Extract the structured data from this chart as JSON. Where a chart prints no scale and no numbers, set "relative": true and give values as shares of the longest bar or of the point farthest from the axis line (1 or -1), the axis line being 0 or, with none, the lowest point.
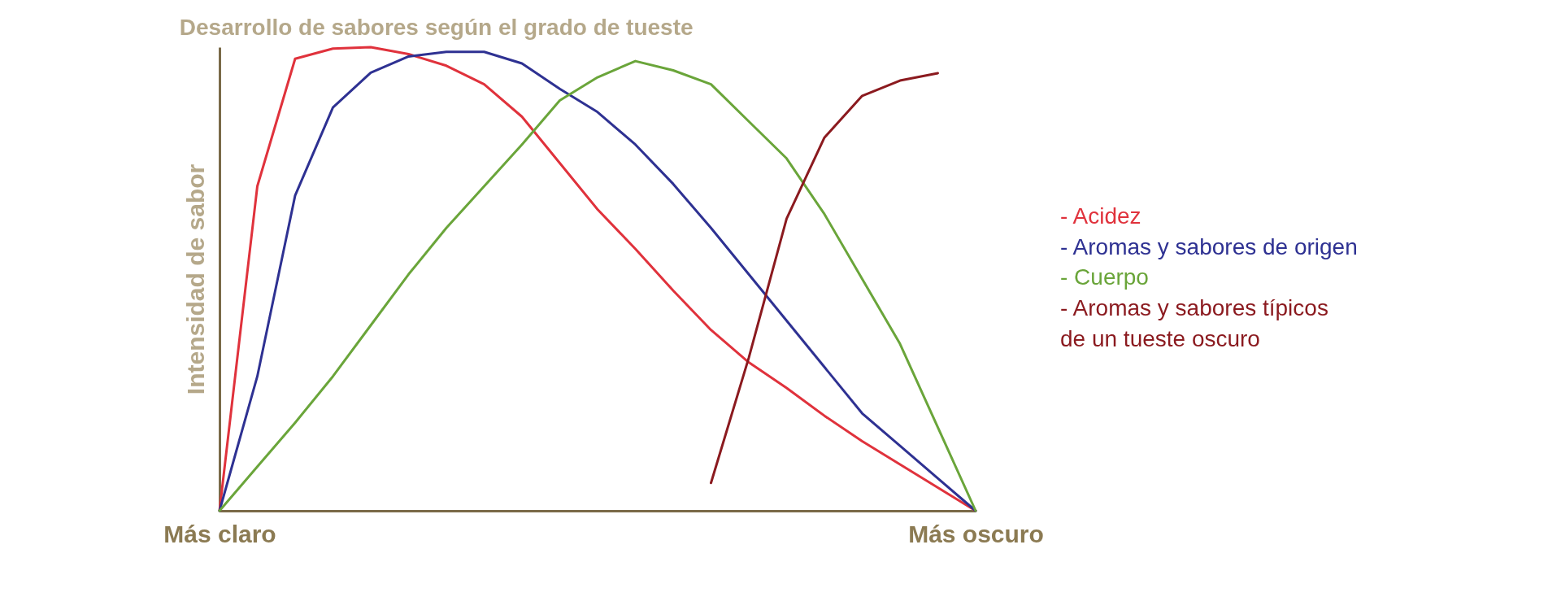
{
  "chart_data": {
    "type": "line",
    "title": "Desarrollo de sabores según el grado de tueste",
    "ylabel": "Intensidad de sabor",
    "relative": true,
    "categories": [
      "Más claro",
      null,
      null,
      null,
      null,
      null,
      null,
      null,
      null,
      null,
      null,
      null,
      null,
      null,
      null,
      null,
      null,
      null,
      null,
      null,
      "Más oscuro"
    ],
    "grid": false,
    "marker": "none",
    "line_style": "solid",
    "series": [
      {
        "name": "- Acidez",
        "color": "#e0323c",
        "values": [
          0,
          0.7,
          0.975,
          0.997,
          1,
          0.985,
          0.96,
          0.92,
          0.85,
          0.75,
          0.65,
          0.565,
          0.475,
          0.39,
          0.32,
          0.265,
          0.205,
          0.15,
          0.1,
          0.05,
          0
        ]
      },
      {
        "name": "- Aromas y sabores de origen",
        "color": "#2e3192",
        "values": [
          0,
          0.29,
          0.68,
          0.87,
          0.945,
          0.98,
          0.99,
          0.99,
          0.965,
          0.91,
          0.86,
          0.79,
          0.705,
          0.61,
          0.51,
          0.41,
          0.31,
          0.21,
          0.14,
          0.07,
          0
        ]
      },
      {
        "name": "- Cuerpo",
        "color": "#6aa53a",
        "values": [
          0,
          0.095,
          0.19,
          0.29,
          0.4,
          0.51,
          0.61,
          0.7,
          0.79,
          0.885,
          0.935,
          0.97,
          0.95,
          0.92,
          0.84,
          0.76,
          0.64,
          0.5,
          0.36,
          0.18,
          0
        ]
      },
      {
        "name": "- Aromas y sabores típicos de un tueste oscuro",
        "color": "#8b1a1f",
        "values": [
          null,
          null,
          null,
          null,
          null,
          null,
          null,
          null,
          null,
          null,
          null,
          null,
          null,
          0.06,
          0.33,
          0.63,
          0.805,
          0.895,
          0.928,
          0.944,
          null
        ]
      }
    ]
  }
}
